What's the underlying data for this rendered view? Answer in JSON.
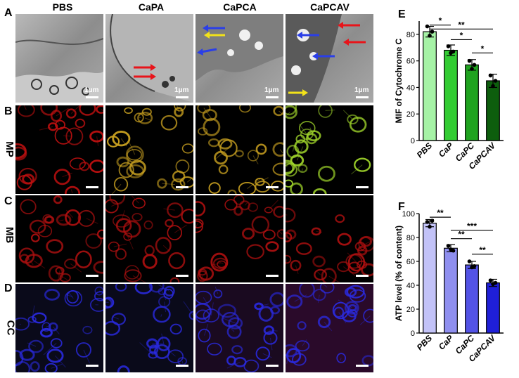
{
  "panel_labels": {
    "A": "A",
    "B": "B",
    "C": "C",
    "D": "D",
    "E": "E",
    "F": "F"
  },
  "columns": [
    "PBS",
    "CaPA",
    "CaPCA",
    "CaPCAV"
  ],
  "rows": [
    "MP",
    "MB",
    "CC"
  ],
  "scale_label": "1μm",
  "colors": {
    "mp_red": "#c01010",
    "mp_green": "#9ed22a",
    "mp_yellow": "#c8a020",
    "mb_red": "#b01010",
    "cc_blue": "#2a2ae0",
    "arrow_red": "#e8141a",
    "arrow_blue": "#2a3ee8",
    "arrow_yellow": "#f2e21a"
  },
  "chart_data": [
    {
      "type": "bar",
      "panel": "E",
      "categories": [
        "PBS",
        "CaP",
        "CaPC",
        "CaPCAV"
      ],
      "values": [
        82,
        68,
        57,
        45
      ],
      "errors": [
        4,
        4,
        4,
        5
      ],
      "points": [
        [
          86,
          79,
          82
        ],
        [
          71,
          66,
          67
        ],
        [
          60,
          54,
          57
        ],
        [
          49,
          41,
          45
        ]
      ],
      "colors": [
        "#a6f2a6",
        "#33cc33",
        "#1fa31f",
        "#0d5e0d"
      ],
      "xlabel": "",
      "ylabel": "MIF of Cytochrome C",
      "ylim": [
        0,
        90
      ],
      "yticks": [
        0,
        20,
        40,
        60,
        80
      ],
      "significance": [
        {
          "from": 0,
          "to": 1,
          "label": "*",
          "y": 87
        },
        {
          "from": 1,
          "to": 2,
          "label": "*",
          "y": 76
        },
        {
          "from": 0,
          "to": 3,
          "label": "**",
          "y": 84
        },
        {
          "from": 2,
          "to": 3,
          "label": "*",
          "y": 66
        }
      ]
    },
    {
      "type": "bar",
      "panel": "F",
      "categories": [
        "PBS",
        "CaP",
        "CaPC",
        "CaPCAV"
      ],
      "values": [
        92,
        71,
        57,
        42
      ],
      "errors": [
        3,
        3,
        3,
        3
      ],
      "points": [
        [
          93,
          89,
          94
        ],
        [
          73,
          70,
          69
        ],
        [
          60,
          55,
          56
        ],
        [
          44,
          41,
          42
        ]
      ],
      "colors": [
        "#c3c3f8",
        "#8f8fef",
        "#5353e6",
        "#1f1fd8"
      ],
      "xlabel": "",
      "ylabel": "ATP level (% of content)",
      "ylim": [
        0,
        100
      ],
      "yticks": [
        0,
        20,
        40,
        60,
        80,
        100
      ],
      "significance": [
        {
          "from": 0,
          "to": 1,
          "label": "**",
          "y": 97
        },
        {
          "from": 1,
          "to": 2,
          "label": "**",
          "y": 79
        },
        {
          "from": 1,
          "to": 3,
          "label": "***",
          "y": 86
        },
        {
          "from": 2,
          "to": 3,
          "label": "**",
          "y": 66
        }
      ]
    }
  ]
}
